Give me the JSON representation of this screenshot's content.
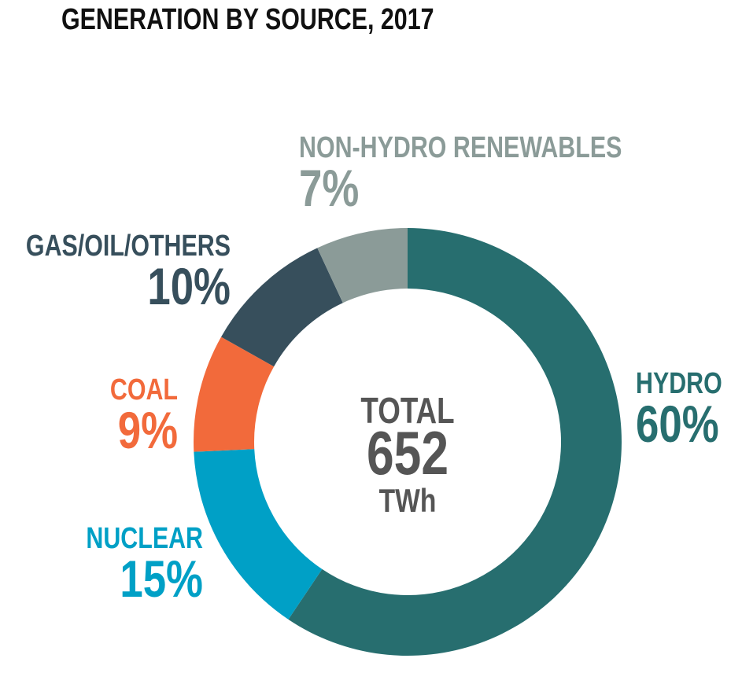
{
  "chart_data": {
    "type": "donut",
    "title": "GENERATION BY SOURCE, 2017",
    "categories": [
      "HYDRO",
      "NUCLEAR",
      "COAL",
      "GAS/OIL/OTHERS",
      "NON-HYDRO RENEWABLES"
    ],
    "values": [
      60,
      15,
      9,
      10,
      7
    ],
    "value_labels": [
      "60%",
      "15%",
      "9%",
      "10%",
      "7%"
    ],
    "colors": [
      "#276e6f",
      "#00a0c6",
      "#f26a3b",
      "#374f5c",
      "#8b9b98"
    ],
    "center_title": "TOTAL",
    "total": 652,
    "total_unit": "TWh"
  }
}
